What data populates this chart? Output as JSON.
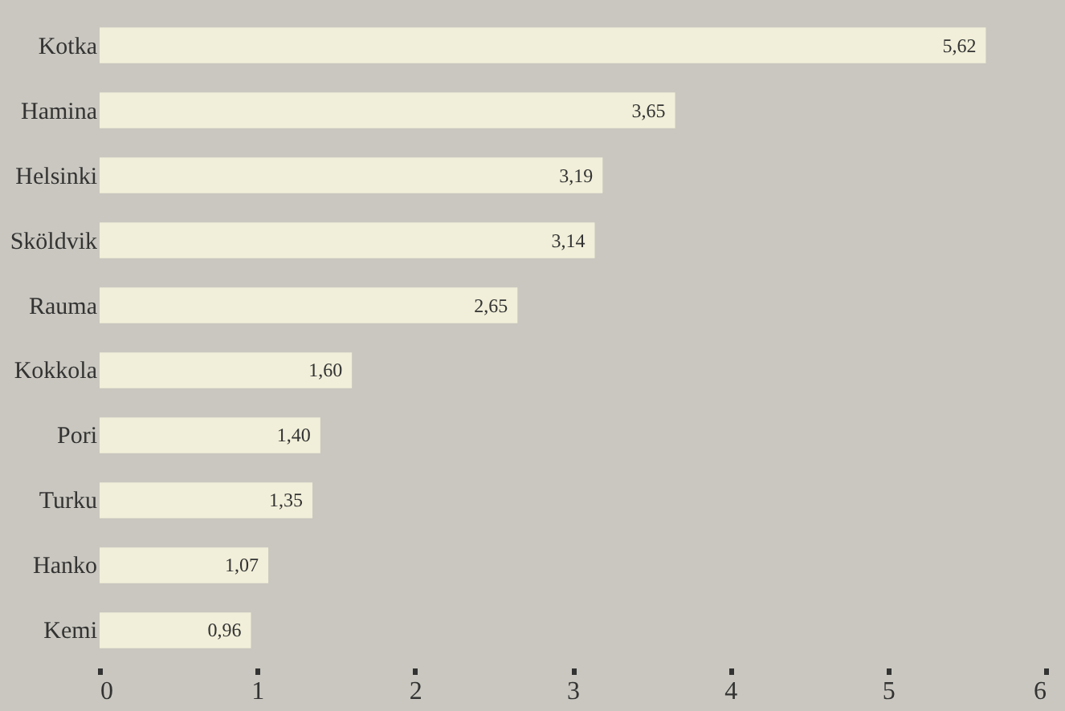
{
  "chart_data": {
    "type": "bar",
    "orientation": "horizontal",
    "categories": [
      "Kotka",
      "Hamina",
      "Helsinki",
      "Sköldvik",
      "Rauma",
      "Kokkola",
      "Pori",
      "Turku",
      "Hanko",
      "Kemi"
    ],
    "values": [
      5.62,
      3.65,
      3.19,
      3.14,
      2.65,
      1.6,
      1.4,
      1.35,
      1.07,
      0.96
    ],
    "value_labels": [
      "5,62",
      "3,65",
      "3,19",
      "3,14",
      "2,65",
      "1,60",
      "1,40",
      "1,35",
      "1,07",
      "0,96"
    ],
    "color": "#f1efd9",
    "xlim": [
      0,
      6
    ],
    "xticks": [
      0,
      1,
      2,
      3,
      4,
      5,
      6
    ],
    "grid": false
  }
}
